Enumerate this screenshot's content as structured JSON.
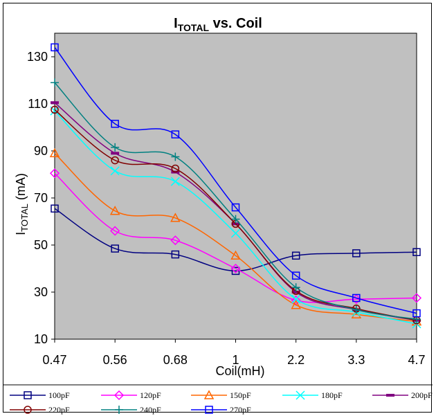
{
  "chart_data": {
    "type": "line",
    "title": "I",
    "title_sub": "TOTAL",
    "title_rest": " vs. Coil",
    "xlabel": "Coil(mH)",
    "ylabel_main": "I",
    "ylabel_sub": "TOTAL",
    "ylabel_rest": "  (mA)",
    "categories": [
      "0.47",
      "0.56",
      "0.68",
      "1",
      "2.2",
      "3.3",
      "4.7"
    ],
    "yticks": [
      10,
      30,
      50,
      70,
      90,
      110,
      130
    ],
    "ylim": [
      10,
      140
    ],
    "grid": false,
    "plot_background": "#c0c0c0",
    "legend_position": "bottom",
    "series": [
      {
        "name": "100pF",
        "color": "#000080",
        "marker": "square",
        "values": [
          65.5,
          48.5,
          46,
          39,
          45.5,
          46.5,
          47
        ]
      },
      {
        "name": "120pF",
        "color": "#ff00ff",
        "marker": "diamond",
        "values": [
          80.5,
          56,
          52,
          40,
          26.5,
          27,
          27.5
        ]
      },
      {
        "name": "150pF",
        "color": "#ff6600",
        "marker": "triangle",
        "values": [
          89,
          64.5,
          61.5,
          45.5,
          24.5,
          20.5,
          17.5
        ]
      },
      {
        "name": "180pF",
        "color": "#00ffff",
        "marker": "x",
        "values": [
          107,
          81.5,
          77,
          55,
          27,
          21.5,
          16.5
        ]
      },
      {
        "name": "200pF",
        "color": "#800080",
        "marker": "dash",
        "values": [
          110.5,
          89,
          81,
          59,
          30,
          22.5,
          18
        ]
      },
      {
        "name": "220pF",
        "color": "#800000",
        "marker": "circle",
        "values": [
          107.5,
          86,
          82.5,
          59,
          30.5,
          23,
          18
        ]
      },
      {
        "name": "240pF",
        "color": "#008080",
        "marker": "plus",
        "values": [
          119,
          91.5,
          87.5,
          61,
          32,
          22.5,
          18.5
        ]
      },
      {
        "name": "270pF",
        "color": "#0000ff",
        "marker": "square",
        "values": [
          134,
          101.5,
          97,
          66,
          37,
          27.5,
          21
        ]
      }
    ]
  }
}
